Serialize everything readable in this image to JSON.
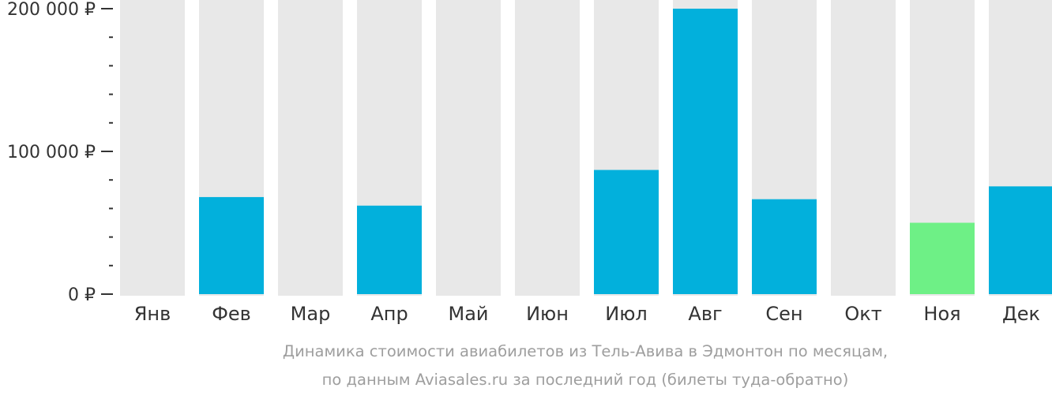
{
  "chart_data": {
    "type": "bar",
    "categories": [
      "Янв",
      "Фев",
      "Мар",
      "Апр",
      "Май",
      "Июн",
      "Июл",
      "Авг",
      "Сен",
      "Окт",
      "Ноя",
      "Дек"
    ],
    "values": [
      null,
      68000,
      null,
      62000,
      null,
      null,
      87000,
      200000,
      66500,
      null,
      50000,
      75500
    ],
    "ylim": [
      0,
      200000
    ],
    "y_ticks": [
      {
        "value": 0,
        "label": "0 ₽"
      },
      {
        "value": 100000,
        "label": "100 000 ₽"
      },
      {
        "value": 200000,
        "label": "200 000 ₽"
      }
    ],
    "minor_tick_step": 20000,
    "highlight_category": "Ноя",
    "colors": {
      "bar": "#02b0dc",
      "highlight": "#6ef086",
      "background_bar": "#e8e8e8",
      "axis": "#333333"
    },
    "grid": false,
    "legend": "none",
    "caption": [
      "Динамика стоимости авиабилетов из Тель-Авива в Эдмонтон по месяцам,",
      "по данным Aviasales.ru за последний год (билеты туда-обратно)"
    ]
  }
}
